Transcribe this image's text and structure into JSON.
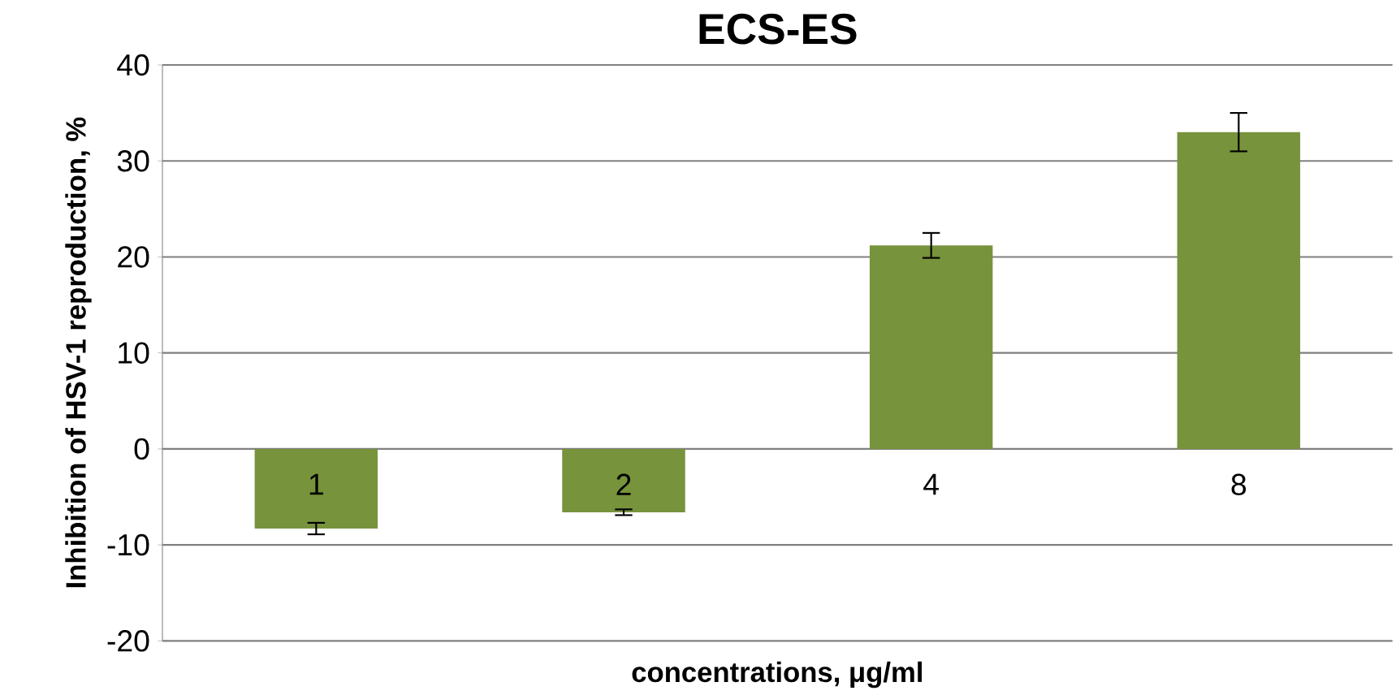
{
  "chart_data": {
    "type": "bar",
    "title": "ECS-ES",
    "xlabel": "concentrations, μg/ml",
    "ylabel": "Inhibition of HSV-1 reproduction, %",
    "categories": [
      "1",
      "2",
      "4",
      "8"
    ],
    "values": [
      -8.3,
      -6.6,
      21.2,
      33.0
    ],
    "errors": [
      0.6,
      0.3,
      1.3,
      2.0
    ],
    "color": "#77933c",
    "ylim": [
      -20,
      40
    ],
    "yticks": [
      -20,
      -10,
      0,
      10,
      20,
      30,
      40
    ],
    "grid": "y"
  }
}
